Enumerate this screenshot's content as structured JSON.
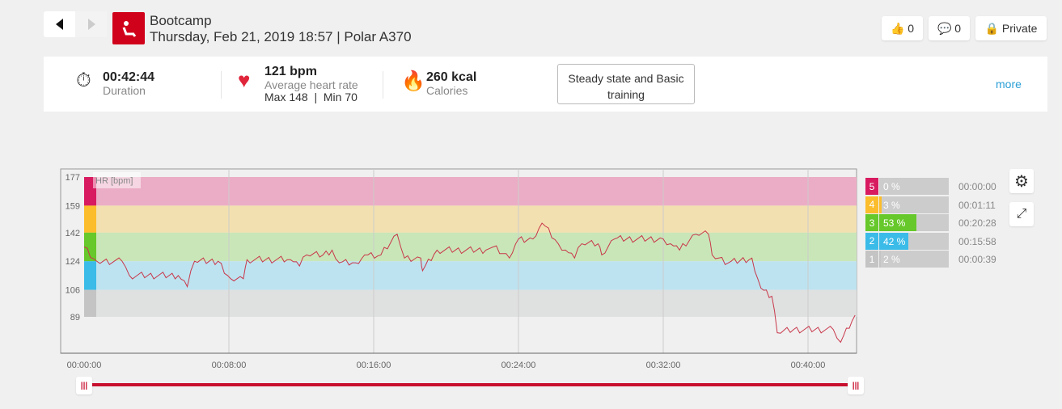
{
  "header": {
    "title": "Bootcamp",
    "subtitle": "Thursday, Feb 21, 2019 18:57 | Polar A370",
    "likes": "0",
    "comments": "0",
    "privacy": "Private"
  },
  "stats": {
    "duration": "00:42:44",
    "duration_label": "Duration",
    "hr": "121 bpm",
    "hr_label": "Average heart rate",
    "hr_range": "Max 148  |  Min 70",
    "calories": "260 kcal",
    "calories_label": "Calories",
    "benefit": "Steady state and Basic training",
    "more": "more"
  },
  "zones": [
    {
      "n": "5",
      "pct": "0 %",
      "frac": 0,
      "time": "00:00:00",
      "color": "#d81b60"
    },
    {
      "n": "4",
      "pct": "3 %",
      "frac": 0.03,
      "time": "00:01:11",
      "color": "#fbbd2b"
    },
    {
      "n": "3",
      "pct": "53 %",
      "frac": 0.53,
      "time": "00:20:28",
      "color": "#66c82a"
    },
    {
      "n": "2",
      "pct": "42 %",
      "frac": 0.42,
      "time": "00:15:58",
      "color": "#3bbbe8"
    },
    {
      "n": "1",
      "pct": "2 %",
      "frac": 0.02,
      "time": "00:00:39",
      "color": "#c4c4c4"
    }
  ],
  "chart_data": {
    "type": "line",
    "series_label": "HR [bpm]",
    "yticks": [
      177,
      159,
      142,
      124,
      106,
      89
    ],
    "xticks": [
      "00:00:00",
      "00:08:00",
      "00:16:00",
      "00:24:00",
      "00:32:00",
      "00:40:00"
    ],
    "xlim_min": [
      0,
      42.73
    ],
    "bands": [
      [
        159,
        177,
        "#ebadc5"
      ],
      [
        142,
        159,
        "#f3e0b0"
      ],
      [
        124,
        142,
        "#c9e6b8"
      ],
      [
        106,
        124,
        "#bde3f0"
      ],
      [
        89,
        106,
        "#dfe1e0"
      ]
    ],
    "line_color": "#c8374a",
    "points": [
      [
        0,
        133
      ],
      [
        0.7,
        124
      ],
      [
        2.1,
        124
      ],
      [
        2.5,
        115
      ],
      [
        5.2,
        115
      ],
      [
        5.7,
        108
      ],
      [
        6.1,
        124
      ],
      [
        7.4,
        124
      ],
      [
        8.1,
        113
      ],
      [
        8.8,
        113
      ],
      [
        9.0,
        125
      ],
      [
        11.4,
        125
      ],
      [
        11.9,
        121
      ],
      [
        12.3,
        128
      ],
      [
        13.2,
        128
      ],
      [
        13.7,
        131
      ],
      [
        14.1,
        123
      ],
      [
        15.0,
        123
      ],
      [
        15.5,
        128
      ],
      [
        16.4,
        128
      ],
      [
        17.3,
        141
      ],
      [
        17.7,
        126
      ],
      [
        18.6,
        126
      ],
      [
        18.7,
        118
      ],
      [
        19.5,
        131
      ],
      [
        22.2,
        131
      ],
      [
        22.6,
        133
      ],
      [
        23.5,
        126
      ],
      [
        24.0,
        138
      ],
      [
        24.8,
        138
      ],
      [
        25.3,
        148
      ],
      [
        26.2,
        135
      ],
      [
        26.6,
        131
      ],
      [
        27.1,
        126
      ],
      [
        27.5,
        135
      ],
      [
        28.4,
        135
      ],
      [
        28.6,
        128
      ],
      [
        29.3,
        138
      ],
      [
        32.0,
        138
      ],
      [
        32.4,
        135
      ],
      [
        32.9,
        131
      ],
      [
        33.8,
        141
      ],
      [
        34.5,
        141
      ],
      [
        34.7,
        128
      ],
      [
        35.6,
        123
      ],
      [
        36.9,
        126
      ],
      [
        37.4,
        107
      ],
      [
        38.0,
        102
      ],
      [
        38.3,
        79
      ],
      [
        39.2,
        81
      ],
      [
        41.4,
        81
      ],
      [
        41.8,
        73
      ],
      [
        42.6,
        90
      ]
    ]
  }
}
